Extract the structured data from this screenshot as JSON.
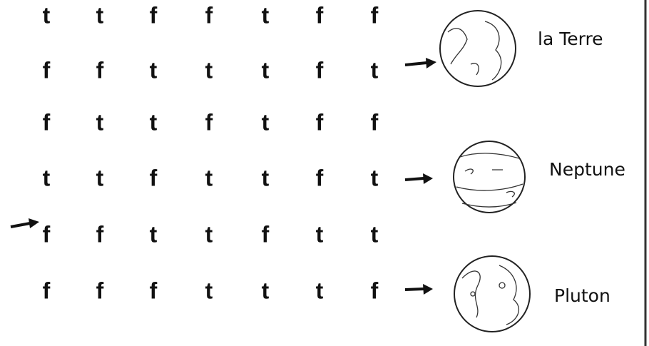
{
  "grid": {
    "rows": [
      [
        "t",
        "t",
        "f",
        "f",
        "t",
        "f",
        "f"
      ],
      [
        "f",
        "f",
        "t",
        "t",
        "t",
        "f",
        "t"
      ],
      [
        "f",
        "t",
        "t",
        "f",
        "t",
        "f",
        "f"
      ],
      [
        "t",
        "t",
        "f",
        "t",
        "t",
        "f",
        "t"
      ],
      [
        "f",
        "f",
        "t",
        "t",
        "f",
        "t",
        "t"
      ],
      [
        "f",
        "f",
        "f",
        "t",
        "t",
        "t",
        "f"
      ]
    ]
  },
  "planets": [
    {
      "label": "la Terre"
    },
    {
      "label": "Neptune"
    },
    {
      "label": "Pluton"
    }
  ]
}
